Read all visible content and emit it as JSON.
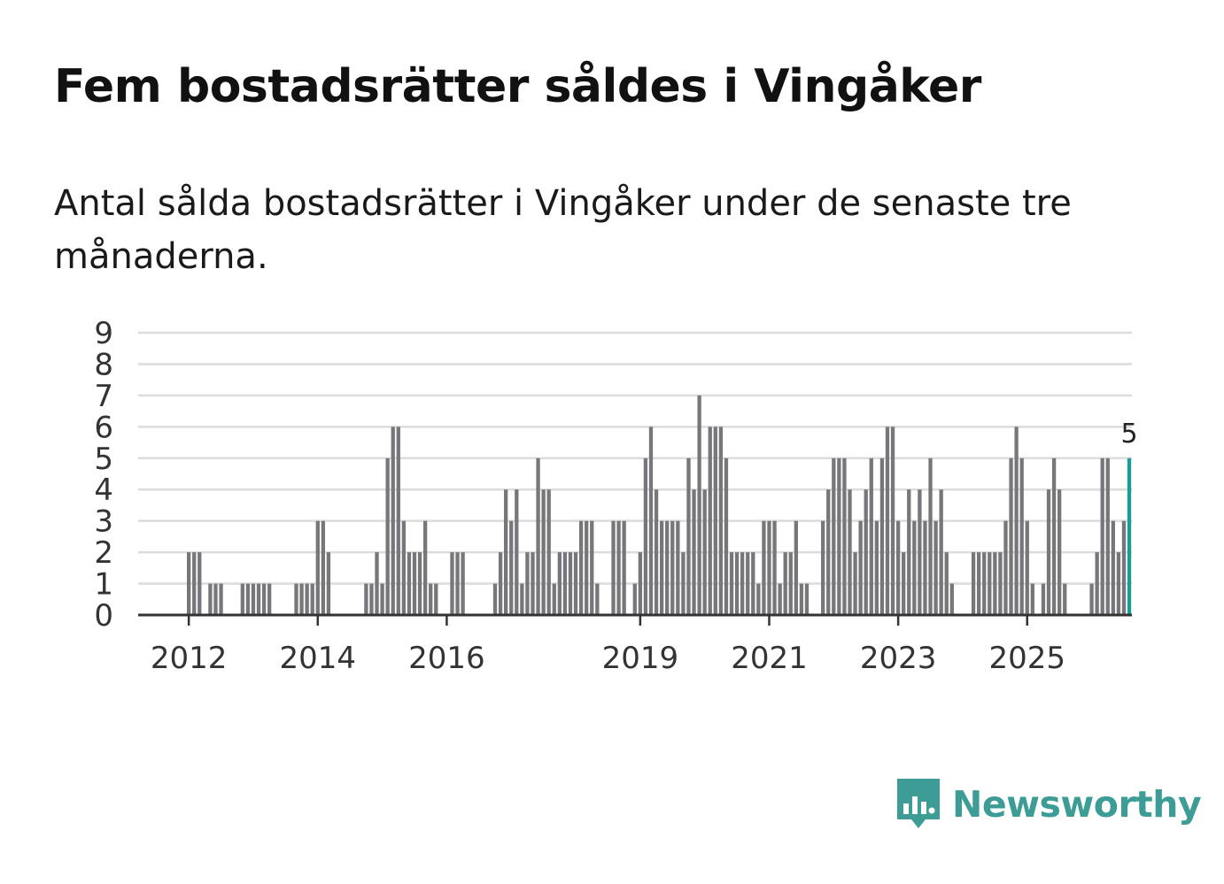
{
  "header": {
    "title": "Fem bostadsrätter såldes i Vingåker",
    "subtitle": "Antal sålda bostadsrätter i Vingåker under de senaste tre månaderna."
  },
  "brand": {
    "name": "Newsworthy",
    "icon": "newsworthy-logo-icon",
    "color": "#3d9c95"
  },
  "chart_data": {
    "type": "bar",
    "title": "Fem bostadsrätter såldes i Vingåker",
    "xlabel": "",
    "ylabel": "",
    "ylim": [
      0,
      9
    ],
    "yticks": [
      0,
      1,
      2,
      3,
      4,
      5,
      6,
      7,
      8,
      9
    ],
    "xticks": [
      {
        "label": "2012",
        "index": 9
      },
      {
        "label": "2014",
        "index": 33
      },
      {
        "label": "2016",
        "index": 57
      },
      {
        "label": "2019",
        "index": 93
      },
      {
        "label": "2021",
        "index": 117
      },
      {
        "label": "2023",
        "index": 141
      },
      {
        "label": "2025",
        "index": 165
      }
    ],
    "bar_color": "#77767b",
    "highlight_color": "#189e9a",
    "highlight_label": "5",
    "values": [
      0,
      0,
      0,
      0,
      0,
      0,
      0,
      0,
      0,
      2,
      2,
      2,
      0,
      1,
      1,
      1,
      0,
      0,
      0,
      1,
      1,
      1,
      1,
      1,
      1,
      0,
      0,
      0,
      0,
      1,
      1,
      1,
      1,
      3,
      3,
      2,
      0,
      0,
      0,
      0,
      0,
      0,
      1,
      1,
      2,
      1,
      5,
      6,
      6,
      3,
      2,
      2,
      2,
      3,
      1,
      1,
      0,
      0,
      2,
      2,
      2,
      0,
      0,
      0,
      0,
      0,
      1,
      2,
      4,
      3,
      4,
      1,
      2,
      2,
      5,
      4,
      4,
      1,
      2,
      2,
      2,
      2,
      3,
      3,
      3,
      1,
      0,
      0,
      3,
      3,
      3,
      0,
      1,
      2,
      5,
      6,
      4,
      3,
      3,
      3,
      3,
      2,
      5,
      4,
      7,
      4,
      6,
      6,
      6,
      5,
      2,
      2,
      2,
      2,
      2,
      1,
      3,
      3,
      3,
      1,
      2,
      2,
      3,
      1,
      1,
      0,
      0,
      3,
      4,
      5,
      5,
      5,
      4,
      2,
      3,
      4,
      5,
      3,
      5,
      6,
      6,
      3,
      2,
      4,
      3,
      4,
      3,
      5,
      3,
      4,
      2,
      1,
      0,
      0,
      0,
      2,
      2,
      2,
      2,
      2,
      2,
      3,
      5,
      6,
      5,
      3,
      1,
      0,
      1,
      4,
      5,
      4,
      1,
      0,
      0,
      0,
      0,
      1,
      2,
      5,
      5,
      3,
      2,
      3,
      5
    ]
  }
}
